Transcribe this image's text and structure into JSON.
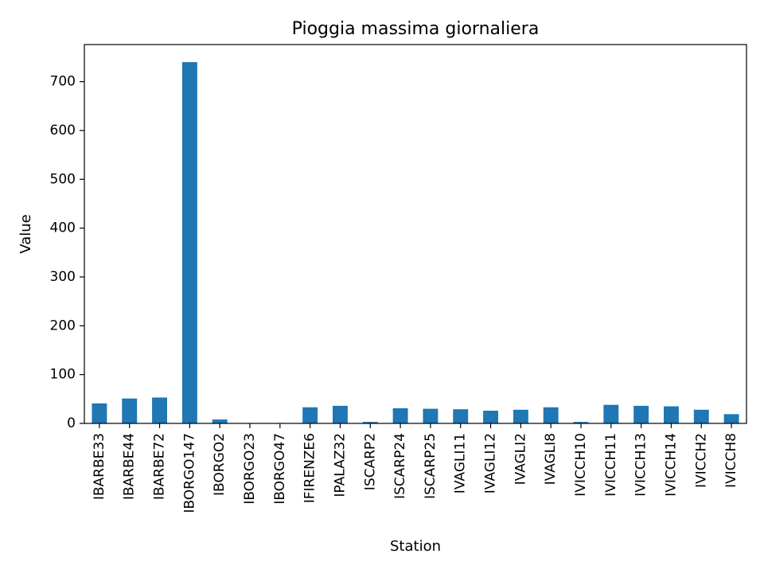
{
  "chart_data": {
    "type": "bar",
    "title": "Pioggia massima giornaliera",
    "xlabel": "Station",
    "ylabel": "Value",
    "ylim": [
      0,
      776
    ],
    "yticks": [
      0,
      100,
      200,
      300,
      400,
      500,
      600,
      700
    ],
    "grid": false,
    "legend": "none",
    "bar_color": "#1f77b4",
    "categories": [
      "IBARBE33",
      "IBARBE44",
      "IBARBE72",
      "IBORGO147",
      "IBORGO2",
      "IBORGO23",
      "IBORGO47",
      "IFIRENZE6",
      "IPALAZ32",
      "ISCARP2",
      "ISCARP24",
      "ISCARP25",
      "IVAGLI11",
      "IVAGLI12",
      "IVAGLI2",
      "IVAGLI8",
      "IVICCH10",
      "IVICCH11",
      "IVICCH13",
      "IVICCH14",
      "IVICCH2",
      "IVICCH8"
    ],
    "values": [
      41,
      51,
      53,
      740,
      8,
      0.4,
      0.4,
      33,
      36,
      3,
      31,
      30,
      29,
      26,
      28,
      33,
      3,
      38,
      36,
      35,
      28,
      19
    ]
  }
}
